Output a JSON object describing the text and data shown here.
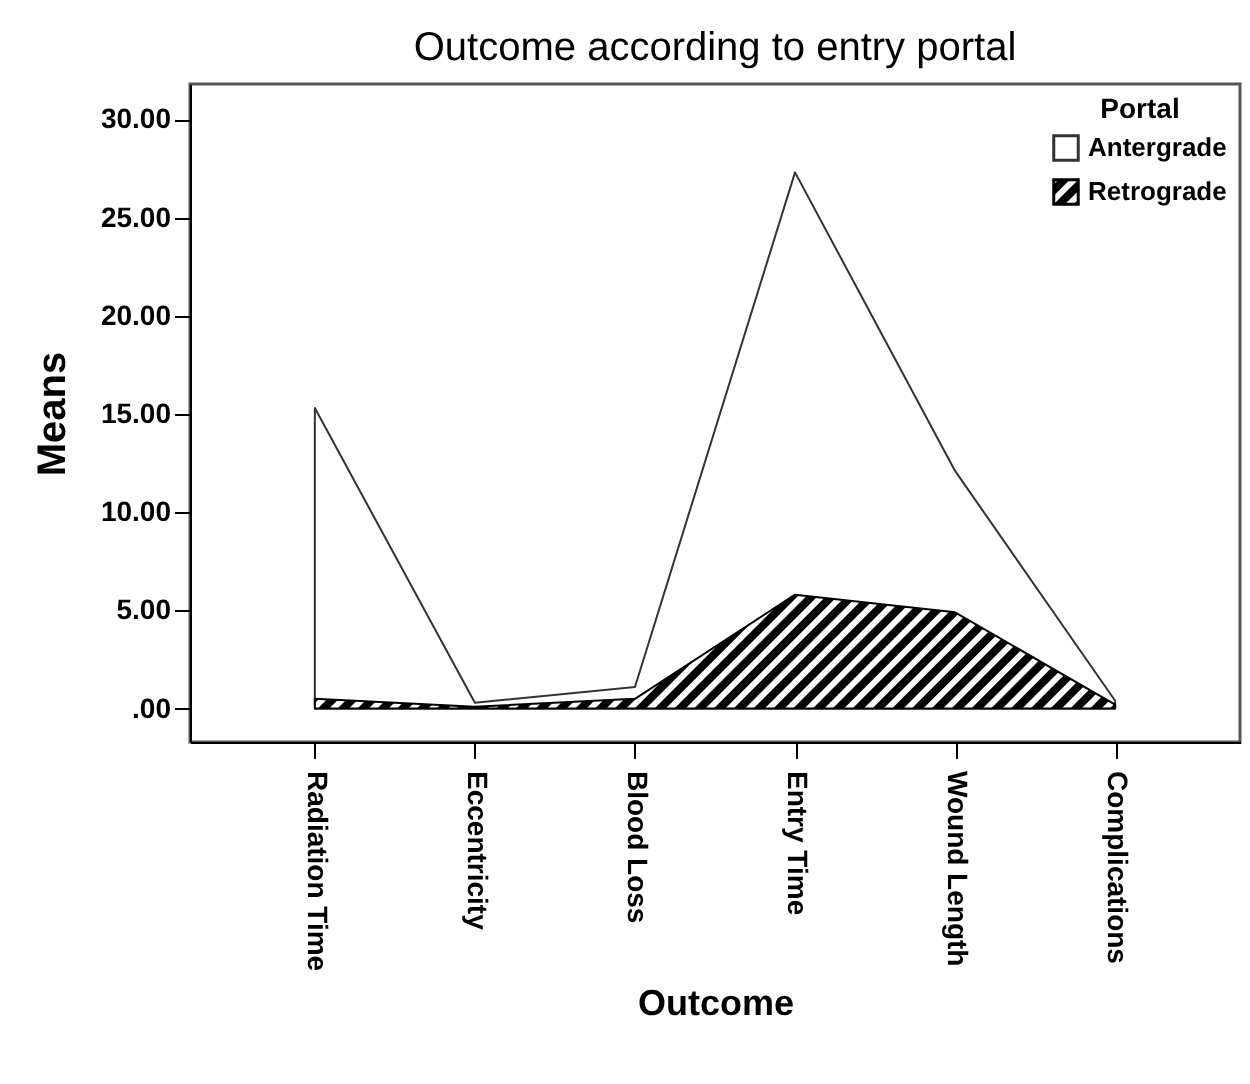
{
  "chart_data": {
    "type": "area",
    "title": "Outcome according to entry portal",
    "xlabel": "Outcome",
    "ylabel": "Means",
    "legend_title": "Portal",
    "categories": [
      "Radiation Time",
      "Eccentricity",
      "Blood Loss",
      "Entry Time",
      "Wound Length",
      "Complications"
    ],
    "series": [
      {
        "name": "Antergrade",
        "color": "#333333",
        "values": [
          15.3,
          0.3,
          1.1,
          27.3,
          12.1,
          0.4
        ]
      },
      {
        "name": "Retrograde",
        "color": "#000000",
        "values": [
          0.5,
          0.1,
          0.5,
          5.8,
          4.9,
          0.2
        ]
      }
    ],
    "ylim": [
      -1.7,
      31.8
    ],
    "yticks": [
      {
        "value": 0,
        "label": ".00"
      },
      {
        "value": 5,
        "label": "5.00"
      },
      {
        "value": 10,
        "label": "10.00"
      },
      {
        "value": 15,
        "label": "15.00"
      },
      {
        "value": 20,
        "label": "20.00"
      },
      {
        "value": 25,
        "label": "25.00"
      },
      {
        "value": 30,
        "label": "30.00"
      }
    ],
    "grid": false,
    "legend": "top right"
  }
}
